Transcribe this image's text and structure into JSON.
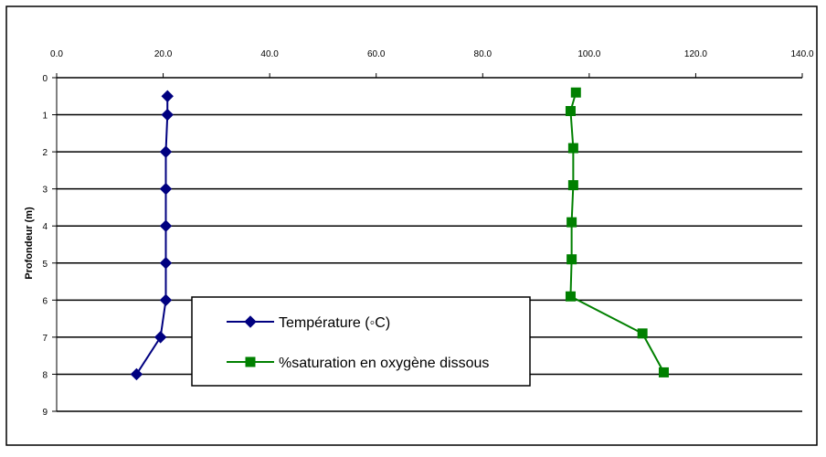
{
  "chart_data": {
    "type": "line",
    "title": "",
    "ylabel": "Profondeur (m)",
    "xlabel": "",
    "x_axis_position": "top",
    "xlim": [
      0,
      140
    ],
    "ylim": [
      0,
      9
    ],
    "y_inverted": true,
    "x_ticks": [
      "0.0",
      "20.0",
      "40.0",
      "60.0",
      "80.0",
      "100.0",
      "120.0",
      "140.0"
    ],
    "y_ticks": [
      "0",
      "1",
      "2",
      "3",
      "4",
      "5",
      "6",
      "7",
      "8",
      "9"
    ],
    "grid": "horizontal",
    "legend_position": "lower-center",
    "series": [
      {
        "name": "Température (◦C)",
        "color": "#000080",
        "marker": "diamond",
        "points": [
          {
            "x": 20.8,
            "y": 0.5
          },
          {
            "x": 20.8,
            "y": 1
          },
          {
            "x": 20.5,
            "y": 2
          },
          {
            "x": 20.5,
            "y": 3
          },
          {
            "x": 20.5,
            "y": 4
          },
          {
            "x": 20.5,
            "y": 5
          },
          {
            "x": 20.5,
            "y": 6
          },
          {
            "x": 19.5,
            "y": 7
          },
          {
            "x": 15.0,
            "y": 8
          }
        ]
      },
      {
        "name": "%saturation en oxygène dissous",
        "color": "#008000",
        "marker": "square",
        "points": [
          {
            "x": 97.5,
            "y": 0.4
          },
          {
            "x": 96.5,
            "y": 0.9
          },
          {
            "x": 97.0,
            "y": 1.9
          },
          {
            "x": 97.0,
            "y": 2.9
          },
          {
            "x": 96.7,
            "y": 3.9
          },
          {
            "x": 96.7,
            "y": 4.9
          },
          {
            "x": 96.5,
            "y": 5.9
          },
          {
            "x": 110.0,
            "y": 6.9
          },
          {
            "x": 114.0,
            "y": 7.95
          }
        ]
      }
    ]
  }
}
